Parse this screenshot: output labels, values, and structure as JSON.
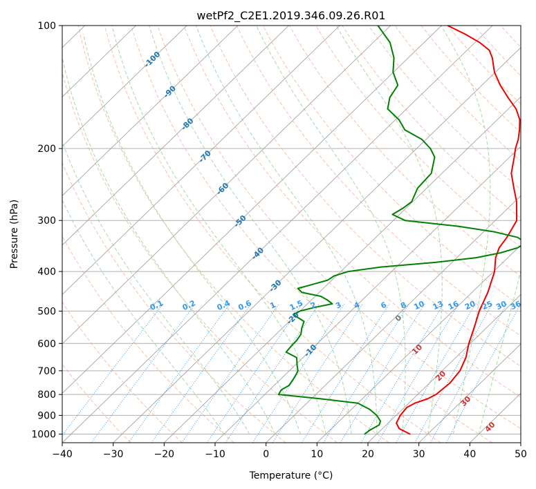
{
  "chart_data": {
    "type": "line",
    "title": "wetPf2_C2E1.2019.346.09.26.R01",
    "xlabel": "Temperature (°C)",
    "ylabel": "Pressure (hPa)",
    "xlim": [
      -40,
      50
    ],
    "ylim": [
      1050,
      100
    ],
    "x_ticks": [
      -40,
      -30,
      -20,
      -10,
      0,
      10,
      20,
      30,
      40,
      50
    ],
    "y_ticks": [
      100,
      200,
      300,
      400,
      500,
      600,
      700,
      800,
      900,
      1000
    ],
    "isotherm_labels": [
      -100,
      -90,
      -80,
      -70,
      -60,
      -50,
      -40,
      -30,
      -20,
      -10
    ],
    "mixing_ratio_labels": [
      "0.1",
      "0.2",
      "0.4",
      "0.6",
      "1",
      "1.5",
      "2",
      "3",
      "4",
      "6",
      "8",
      "10",
      "13",
      "16",
      "20",
      "25",
      "30",
      "36"
    ],
    "wet_bulb_labels": [
      "0",
      "10",
      "20",
      "30",
      "40"
    ],
    "colors": {
      "temperature": "#ee0000",
      "dewpoint": "#008000",
      "isotherm": "#999999",
      "dry_adiabat": "#f4a582",
      "moist_adiabat": "#8fcf8f",
      "mixing_ratio": "#3399ee",
      "isotherm_label": "#1f77b4",
      "wet_bulb_label": "#cc3333"
    },
    "series": [
      {
        "name": "Temperature",
        "points": [
          [
            1000,
            26.5
          ],
          [
            970,
            23.3
          ],
          [
            940,
            21.6
          ],
          [
            900,
            20.8
          ],
          [
            860,
            20.5
          ],
          [
            840,
            21.2
          ],
          [
            820,
            22.8
          ],
          [
            800,
            23.6
          ],
          [
            750,
            24.0
          ],
          [
            700,
            23.5
          ],
          [
            650,
            22.0
          ],
          [
            600,
            19.7
          ],
          [
            550,
            17.6
          ],
          [
            500,
            15.2
          ],
          [
            450,
            13.1
          ],
          [
            400,
            10.2
          ],
          [
            370,
            7.6
          ],
          [
            350,
            6.3
          ],
          [
            330,
            5.7
          ],
          [
            300,
            4.2
          ],
          [
            270,
            0.4
          ],
          [
            250,
            -2.9
          ],
          [
            230,
            -6.4
          ],
          [
            210,
            -9.1
          ],
          [
            200,
            -10.6
          ],
          [
            190,
            -11.9
          ],
          [
            180,
            -13.6
          ],
          [
            170,
            -15.6
          ],
          [
            160,
            -18.5
          ],
          [
            150,
            -22.4
          ],
          [
            140,
            -26.4
          ],
          [
            130,
            -30.2
          ],
          [
            120,
            -33.5
          ],
          [
            115,
            -35.6
          ],
          [
            110,
            -39.1
          ],
          [
            105,
            -43.6
          ],
          [
            100,
            -48.8
          ]
        ]
      },
      {
        "name": "Dewpoint",
        "points": [
          [
            1000,
            17.6
          ],
          [
            980,
            17.8
          ],
          [
            950,
            18.6
          ],
          [
            930,
            18.1
          ],
          [
            900,
            16.2
          ],
          [
            870,
            13.6
          ],
          [
            840,
            10.0
          ],
          [
            820,
            2.0
          ],
          [
            800,
            -7.3
          ],
          [
            780,
            -7.7
          ],
          [
            760,
            -7.1
          ],
          [
            740,
            -7.4
          ],
          [
            720,
            -7.8
          ],
          [
            700,
            -8.3
          ],
          [
            680,
            -9.5
          ],
          [
            650,
            -11.2
          ],
          [
            630,
            -14.4
          ],
          [
            610,
            -14.6
          ],
          [
            590,
            -14.7
          ],
          [
            570,
            -15.1
          ],
          [
            550,
            -16.2
          ],
          [
            530,
            -17.1
          ],
          [
            510,
            -20.6
          ],
          [
            500,
            -20.0
          ],
          [
            490,
            -17.9
          ],
          [
            480,
            -15.1
          ],
          [
            470,
            -16.8
          ],
          [
            460,
            -18.9
          ],
          [
            450,
            -23.4
          ],
          [
            440,
            -25.0
          ],
          [
            430,
            -22.9
          ],
          [
            420,
            -20.8
          ],
          [
            410,
            -20.4
          ],
          [
            400,
            -18.5
          ],
          [
            390,
            -13.0
          ],
          [
            380,
            -3.3
          ],
          [
            370,
            3.8
          ],
          [
            360,
            7.6
          ],
          [
            350,
            9.9
          ],
          [
            340,
            10.5
          ],
          [
            330,
            7.8
          ],
          [
            320,
            2.2
          ],
          [
            310,
            -6.1
          ],
          [
            300,
            -17.7
          ],
          [
            290,
            -21.4
          ],
          [
            280,
            -20.6
          ],
          [
            270,
            -20.2
          ],
          [
            250,
            -21.8
          ],
          [
            230,
            -22.1
          ],
          [
            210,
            -24.7
          ],
          [
            200,
            -27.3
          ],
          [
            190,
            -30.8
          ],
          [
            180,
            -36.1
          ],
          [
            170,
            -39.3
          ],
          [
            160,
            -43.7
          ],
          [
            150,
            -45.6
          ],
          [
            140,
            -46.5
          ],
          [
            130,
            -50.1
          ],
          [
            120,
            -52.8
          ],
          [
            110,
            -56.7
          ],
          [
            100,
            -62.5
          ]
        ]
      }
    ]
  }
}
